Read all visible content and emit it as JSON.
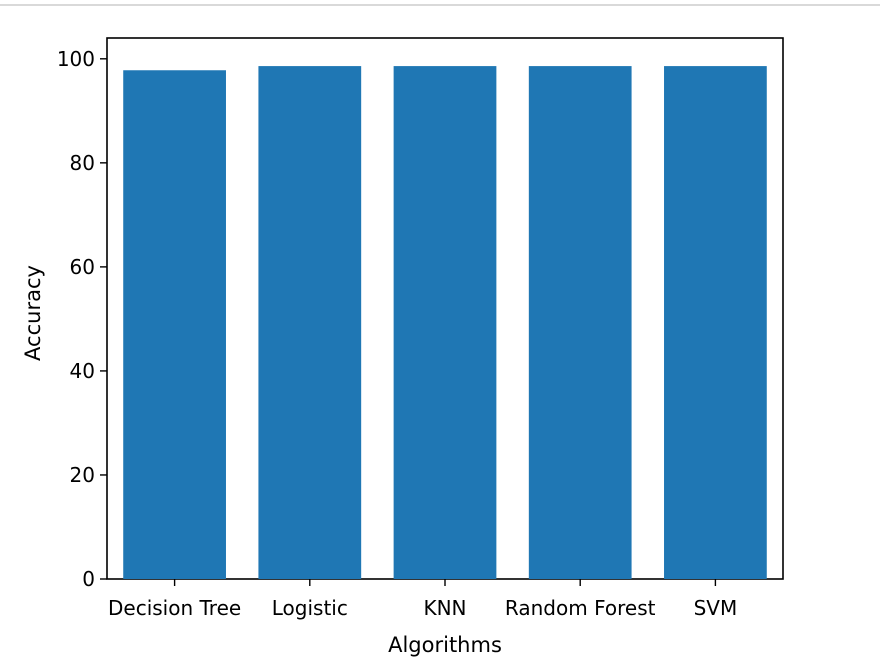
{
  "chart_data": {
    "type": "bar",
    "categories": [
      "Decision Tree",
      "Logistic",
      "KNN",
      "Random Forest",
      "SVM"
    ],
    "values": [
      97.8,
      98.6,
      98.6,
      98.6,
      98.6
    ],
    "xlabel": "Algorithms",
    "ylabel": "Accuracy",
    "ylim": [
      0,
      104
    ],
    "yticks": [
      0,
      20,
      40,
      60,
      80,
      100
    ],
    "grid": false,
    "bar_color": "#1f77b4"
  }
}
